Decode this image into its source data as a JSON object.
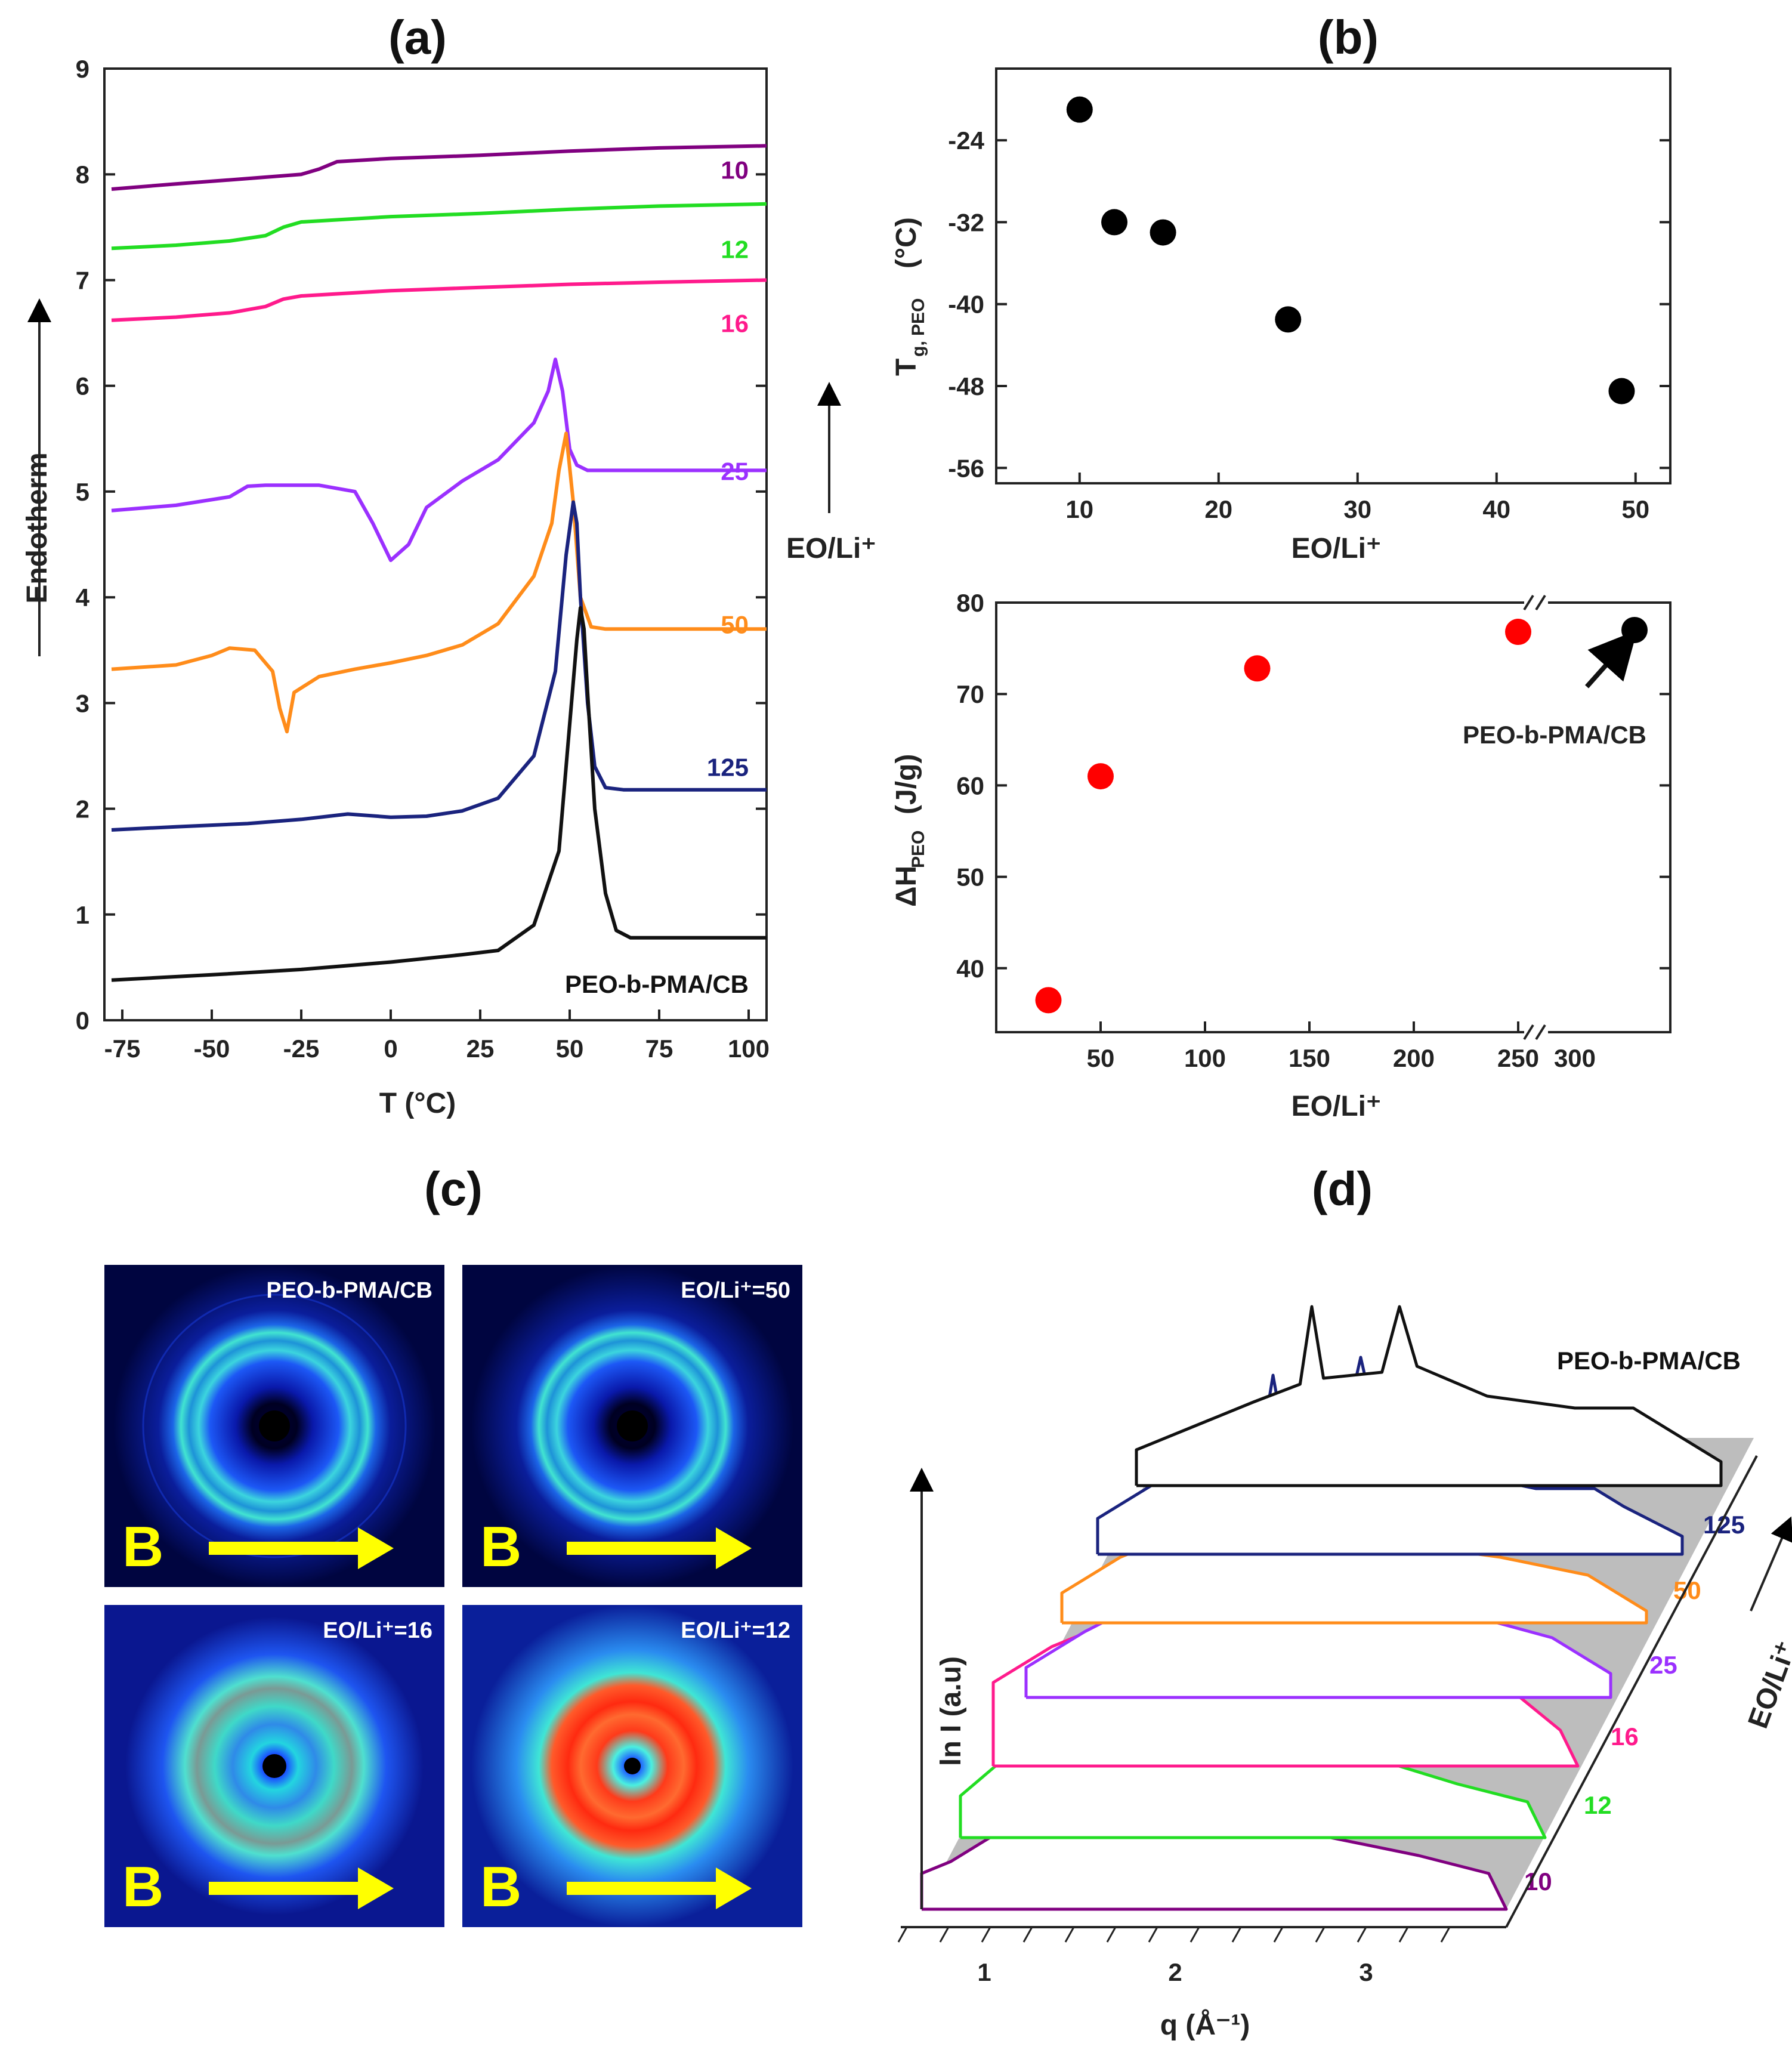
{
  "panels": {
    "a": "(a)",
    "b": "(b)",
    "c": "(c)",
    "d": "(d)"
  },
  "chart_data": [
    {
      "id": "a",
      "type": "line",
      "title": "(a)",
      "xlabel": "T (°C)",
      "ylabel": "Endotherm",
      "xlim": [
        -80,
        105
      ],
      "ylim": [
        0,
        9
      ],
      "xticks": [
        -75,
        -50,
        -25,
        0,
        25,
        50,
        75,
        100
      ],
      "yticks": [
        0,
        1,
        2,
        3,
        4,
        5,
        6,
        7,
        8,
        9
      ],
      "arrow_label": "EO/Li⁺",
      "series": [
        {
          "name": "10",
          "color": "#800080",
          "label_y": 8.05,
          "x": [
            -78,
            -60,
            -40,
            -25,
            -20,
            -15,
            0,
            25,
            50,
            75,
            105
          ],
          "y": [
            7.86,
            7.91,
            7.96,
            8.0,
            8.05,
            8.12,
            8.15,
            8.18,
            8.22,
            8.25,
            8.27
          ]
        },
        {
          "name": "12",
          "color": "#22dd22",
          "label_y": 7.3,
          "x": [
            -78,
            -60,
            -45,
            -35,
            -30,
            -25,
            0,
            25,
            50,
            75,
            105
          ],
          "y": [
            7.3,
            7.33,
            7.37,
            7.42,
            7.5,
            7.55,
            7.6,
            7.63,
            7.67,
            7.7,
            7.72
          ]
        },
        {
          "name": "16",
          "color": "#ff1a8c",
          "label_y": 6.6,
          "x": [
            -78,
            -60,
            -45,
            -35,
            -30,
            -25,
            0,
            25,
            50,
            75,
            105
          ],
          "y": [
            6.62,
            6.65,
            6.69,
            6.75,
            6.82,
            6.85,
            6.9,
            6.93,
            6.96,
            6.98,
            7.0
          ]
        },
        {
          "name": "25",
          "color": "#9b30ff",
          "label_y": 5.2,
          "x": [
            -78,
            -60,
            -45,
            -40,
            -35,
            -20,
            -10,
            -5,
            0,
            5,
            10,
            20,
            30,
            40,
            44,
            46,
            48,
            50,
            52,
            55,
            60,
            75,
            105
          ],
          "y": [
            4.82,
            4.87,
            4.95,
            5.05,
            5.06,
            5.06,
            5.0,
            4.7,
            4.35,
            4.5,
            4.85,
            5.1,
            5.3,
            5.65,
            5.95,
            6.25,
            5.95,
            5.4,
            5.25,
            5.2,
            5.2,
            5.2,
            5.2
          ],
          "peak": 46
        },
        {
          "name": "50",
          "color": "#ff8c1a",
          "label_y": 3.75,
          "x": [
            -78,
            -60,
            -50,
            -45,
            -38,
            -33,
            -31,
            -29,
            -27,
            -20,
            -10,
            0,
            10,
            20,
            30,
            40,
            45,
            47,
            49,
            51,
            53,
            56,
            60,
            75,
            105
          ],
          "y": [
            3.32,
            3.36,
            3.45,
            3.52,
            3.5,
            3.3,
            2.95,
            2.73,
            3.1,
            3.25,
            3.32,
            3.38,
            3.45,
            3.55,
            3.75,
            4.2,
            4.7,
            5.2,
            5.55,
            4.9,
            4.0,
            3.72,
            3.7,
            3.7,
            3.7
          ],
          "peak": 49
        },
        {
          "name": "125",
          "color": "#1a237e",
          "label_y": 2.4,
          "x": [
            -78,
            -60,
            -40,
            -25,
            -12,
            0,
            10,
            20,
            30,
            40,
            46,
            49,
            51,
            52,
            53,
            55,
            57,
            60,
            65,
            75,
            105
          ],
          "y": [
            1.8,
            1.83,
            1.86,
            1.9,
            1.95,
            1.92,
            1.93,
            1.98,
            2.1,
            2.5,
            3.3,
            4.4,
            4.9,
            4.7,
            4.0,
            3.0,
            2.4,
            2.2,
            2.18,
            2.18,
            2.18
          ],
          "peak": 51
        },
        {
          "name": "PEO-b-PMA/CB",
          "color": "#111111",
          "label_y": 0.35,
          "x": [
            -78,
            -50,
            -25,
            0,
            20,
            30,
            40,
            47,
            50,
            52,
            53,
            54,
            55,
            57,
            60,
            63,
            67,
            75,
            105
          ],
          "y": [
            0.38,
            0.43,
            0.48,
            0.55,
            0.62,
            0.66,
            0.9,
            1.6,
            2.8,
            3.6,
            3.9,
            3.7,
            3.1,
            2.0,
            1.2,
            0.85,
            0.78,
            0.78,
            0.78
          ],
          "peak": 53
        }
      ]
    },
    {
      "id": "b-top",
      "type": "scatter",
      "title": "(b)",
      "xlabel": "EO/Li⁺",
      "ylabel": "T",
      "ylabel_sub": "g, PEO",
      "ylabel_unit": "(°C)",
      "xlim": [
        4,
        52.5
      ],
      "ylim": [
        -57.5,
        -17
      ],
      "xticks": [
        10,
        20,
        30,
        40,
        50
      ],
      "yticks": [
        -24,
        -32,
        -40,
        -48,
        -56
      ],
      "x": [
        10,
        12.5,
        16,
        25,
        49
      ],
      "y": [
        -21,
        -32,
        -33,
        -41.5,
        -48.5
      ],
      "color": "#000000"
    },
    {
      "id": "b-bottom",
      "type": "scatter",
      "xlabel": "EO/Li⁺",
      "ylabel": "ΔH",
      "ylabel_sub": "PEO",
      "ylabel_unit": "(J/g)",
      "xlim": [
        0,
        260
      ],
      "ylim": [
        33,
        80
      ],
      "xticks": [
        50,
        100,
        150,
        200,
        250
      ],
      "extra_tick": "300",
      "yticks": [
        40,
        50,
        60,
        70,
        80
      ],
      "x": [
        25,
        50,
        125,
        250
      ],
      "y": [
        36.5,
        61,
        72.8,
        76.8
      ],
      "color": "#ff0000",
      "reference": {
        "label": "PEO-b-PMA/CB",
        "y": 77,
        "color": "#000000"
      }
    },
    {
      "id": "d",
      "type": "line",
      "title": "(d)",
      "xlabel": "q (Å⁻¹)",
      "ylabel": "ln I (a.u)",
      "depth_label": "EO/Li⁺",
      "xticks": [
        1,
        2,
        3
      ],
      "series": [
        {
          "name": "10",
          "color": "#800080"
        },
        {
          "name": "12",
          "color": "#22dd22"
        },
        {
          "name": "16",
          "color": "#ff1a8c"
        },
        {
          "name": "25",
          "color": "#9b30ff"
        },
        {
          "name": "50",
          "color": "#ff8c1a"
        },
        {
          "name": "125",
          "color": "#1a237e"
        },
        {
          "name": "PEO-b-PMA/CB",
          "color": "#111111"
        }
      ]
    }
  ],
  "images_c": [
    {
      "label": "PEO-b-PMA/CB",
      "b": "B"
    },
    {
      "label": "EO/Li⁺=50",
      "b": "B"
    },
    {
      "label": "EO/Li⁺=16",
      "b": "B"
    },
    {
      "label": "EO/Li⁺=12",
      "b": "B"
    }
  ]
}
